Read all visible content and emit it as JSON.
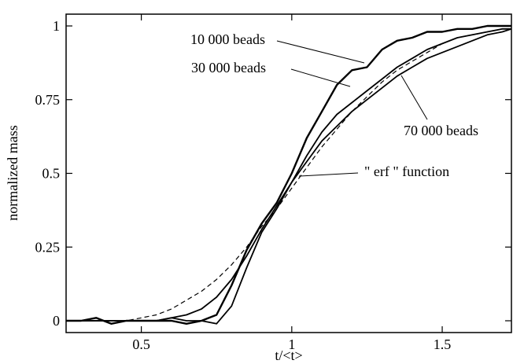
{
  "chart_data": {
    "type": "line",
    "xlabel": "t/<t>",
    "ylabel": "normalized mass",
    "xlim": [
      0.25,
      1.73
    ],
    "ylim": [
      -0.04,
      1.04
    ],
    "x_ticks": [
      0.5,
      1,
      1.5
    ],
    "x_tick_labels": [
      "0.5",
      "1",
      "1.5"
    ],
    "y_ticks": [
      0,
      0.25,
      0.5,
      0.75,
      1
    ],
    "y_tick_labels": [
      "0",
      "0.25",
      "0.5",
      "0.75",
      "1"
    ],
    "grid": false,
    "legend": "none",
    "series": [
      {
        "name": "10 000 beads",
        "color": "#000000",
        "style": "solid",
        "x": [
          0.25,
          0.3,
          0.35,
          0.4,
          0.45,
          0.5,
          0.55,
          0.6,
          0.65,
          0.7,
          0.75,
          0.8,
          0.85,
          0.9,
          0.95,
          1.0,
          1.05,
          1.1,
          1.15,
          1.2,
          1.25,
          1.3,
          1.35,
          1.4,
          1.45,
          1.5,
          1.55,
          1.6,
          1.65,
          1.7,
          1.73
        ],
        "y": [
          0.0,
          0.0,
          0.01,
          -0.01,
          0.0,
          0.0,
          0.0,
          0.0,
          -0.01,
          0.0,
          0.02,
          0.12,
          0.24,
          0.33,
          0.4,
          0.5,
          0.62,
          0.71,
          0.8,
          0.85,
          0.86,
          0.92,
          0.95,
          0.96,
          0.98,
          0.98,
          0.99,
          0.99,
          1.0,
          1.0,
          1.0
        ]
      },
      {
        "name": "30 000 beads",
        "color": "#000000",
        "style": "solid",
        "x": [
          0.25,
          0.3,
          0.35,
          0.4,
          0.45,
          0.5,
          0.55,
          0.6,
          0.65,
          0.7,
          0.75,
          0.8,
          0.85,
          0.9,
          0.95,
          1.0,
          1.05,
          1.1,
          1.15,
          1.2,
          1.25,
          1.3,
          1.35,
          1.4,
          1.45,
          1.5,
          1.55,
          1.6,
          1.65,
          1.7,
          1.73
        ],
        "y": [
          0.0,
          0.0,
          0.0,
          0.0,
          0.0,
          0.0,
          0.0,
          0.01,
          0.0,
          0.0,
          -0.01,
          0.05,
          0.18,
          0.3,
          0.38,
          0.47,
          0.56,
          0.64,
          0.7,
          0.74,
          0.78,
          0.82,
          0.86,
          0.89,
          0.92,
          0.94,
          0.96,
          0.97,
          0.98,
          0.99,
          0.99
        ]
      },
      {
        "name": "70 000 beads",
        "color": "#000000",
        "style": "solid",
        "x": [
          0.25,
          0.3,
          0.35,
          0.4,
          0.45,
          0.5,
          0.55,
          0.6,
          0.65,
          0.7,
          0.75,
          0.8,
          0.85,
          0.9,
          0.95,
          1.0,
          1.05,
          1.1,
          1.15,
          1.2,
          1.25,
          1.3,
          1.35,
          1.4,
          1.45,
          1.5,
          1.55,
          1.6,
          1.65,
          1.7,
          1.73
        ],
        "y": [
          0.0,
          0.0,
          0.0,
          0.0,
          0.0,
          0.0,
          0.0,
          0.01,
          0.02,
          0.04,
          0.08,
          0.14,
          0.22,
          0.31,
          0.39,
          0.47,
          0.54,
          0.61,
          0.66,
          0.71,
          0.75,
          0.79,
          0.83,
          0.86,
          0.89,
          0.91,
          0.93,
          0.95,
          0.97,
          0.98,
          0.99
        ]
      },
      {
        "name": "\" erf \" function",
        "color": "#000000",
        "style": "dashed",
        "x": [
          0.25,
          0.3,
          0.35,
          0.4,
          0.45,
          0.5,
          0.55,
          0.6,
          0.65,
          0.7,
          0.75,
          0.8,
          0.85,
          0.9,
          0.95,
          1.0,
          1.05,
          1.1,
          1.15,
          1.2,
          1.25,
          1.3,
          1.35,
          1.4,
          1.45,
          1.5,
          1.55,
          1.6,
          1.65,
          1.7,
          1.73
        ],
        "y": [
          0.0,
          0.0,
          0.0,
          0.0,
          0.0,
          0.01,
          0.02,
          0.04,
          0.07,
          0.1,
          0.14,
          0.19,
          0.25,
          0.32,
          0.38,
          0.45,
          0.52,
          0.59,
          0.65,
          0.71,
          0.76,
          0.81,
          0.85,
          0.88,
          0.91,
          0.94,
          0.96,
          0.97,
          0.98,
          0.99,
          0.99
        ]
      }
    ],
    "annotations": [
      {
        "text": "10 000 beads",
        "points_to_series": "10 000 beads",
        "target": [
          1.3,
          0.9
        ]
      },
      {
        "text": "30 000 beads",
        "points_to_series": "30 000 beads",
        "target": [
          1.22,
          0.76
        ]
      },
      {
        "text": "70 000 beads",
        "points_to_series": "70 000 beads",
        "target": [
          1.38,
          0.84
        ]
      },
      {
        "text": "\" erf \" function",
        "points_to_series": "\" erf \" function",
        "target": [
          1.0,
          0.45
        ]
      }
    ]
  }
}
